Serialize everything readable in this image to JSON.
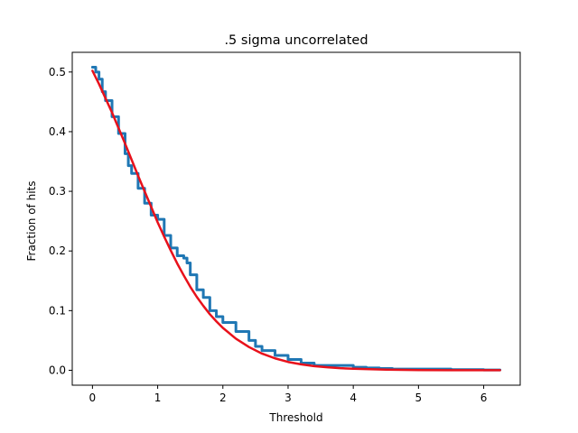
{
  "chart_data": {
    "type": "line",
    "title": ".5 sigma uncorrelated",
    "xlabel": "Threshold",
    "ylabel": "Fraction of hits",
    "xlim": [
      -0.31,
      6.56
    ],
    "ylim": [
      -0.025,
      0.533
    ],
    "xticks": [
      0,
      1,
      2,
      3,
      4,
      5,
      6
    ],
    "xtick_labels": [
      "0",
      "1",
      "2",
      "3",
      "4",
      "5",
      "6"
    ],
    "yticks": [
      0.0,
      0.1,
      0.2,
      0.3,
      0.4,
      0.5
    ],
    "ytick_labels": [
      "0.0",
      "0.1",
      "0.2",
      "0.3",
      "0.4",
      "0.5"
    ],
    "grid": false,
    "series": [
      {
        "color": "#1f77b4",
        "style": "step",
        "linewidth": 3,
        "x": [
          0.0,
          0.05,
          0.1,
          0.15,
          0.2,
          0.3,
          0.4,
          0.5,
          0.55,
          0.6,
          0.7,
          0.8,
          0.9,
          1.0,
          1.1,
          1.2,
          1.3,
          1.4,
          1.45,
          1.5,
          1.6,
          1.7,
          1.8,
          1.9,
          2.0,
          2.2,
          2.4,
          2.5,
          2.6,
          2.8,
          3.0,
          3.2,
          3.4,
          3.6,
          3.8,
          4.0,
          4.2,
          4.4,
          4.6,
          5.0,
          5.5,
          6.0,
          6.25
        ],
        "y": [
          0.508,
          0.5,
          0.488,
          0.467,
          0.452,
          0.425,
          0.397,
          0.363,
          0.343,
          0.33,
          0.305,
          0.28,
          0.26,
          0.253,
          0.226,
          0.205,
          0.192,
          0.188,
          0.18,
          0.16,
          0.135,
          0.122,
          0.1,
          0.09,
          0.08,
          0.065,
          0.05,
          0.04,
          0.033,
          0.025,
          0.018,
          0.012,
          0.008,
          0.008,
          0.008,
          0.005,
          0.004,
          0.003,
          0.002,
          0.002,
          0.001,
          0.0005,
          0.0005
        ]
      },
      {
        "color": "#e8111b",
        "style": "line",
        "linewidth": 2.5,
        "x": [
          0.0,
          0.1,
          0.2,
          0.3,
          0.4,
          0.5,
          0.6,
          0.7,
          0.8,
          0.9,
          1.0,
          1.1,
          1.2,
          1.3,
          1.4,
          1.5,
          1.6,
          1.7,
          1.8,
          1.9,
          2.0,
          2.2,
          2.4,
          2.6,
          2.8,
          3.0,
          3.2,
          3.4,
          3.6,
          3.8,
          4.0,
          4.5,
          5.0,
          5.5,
          6.0,
          6.25
        ],
        "y": [
          0.502,
          0.48,
          0.456,
          0.432,
          0.406,
          0.38,
          0.353,
          0.326,
          0.3,
          0.274,
          0.248,
          0.224,
          0.201,
          0.179,
          0.159,
          0.14,
          0.123,
          0.108,
          0.094,
          0.082,
          0.071,
          0.053,
          0.039,
          0.028,
          0.02,
          0.014,
          0.01,
          0.007,
          0.005,
          0.0035,
          0.0025,
          0.001,
          0.0004,
          0.0002,
          0.0001,
          0.0001
        ]
      }
    ]
  }
}
